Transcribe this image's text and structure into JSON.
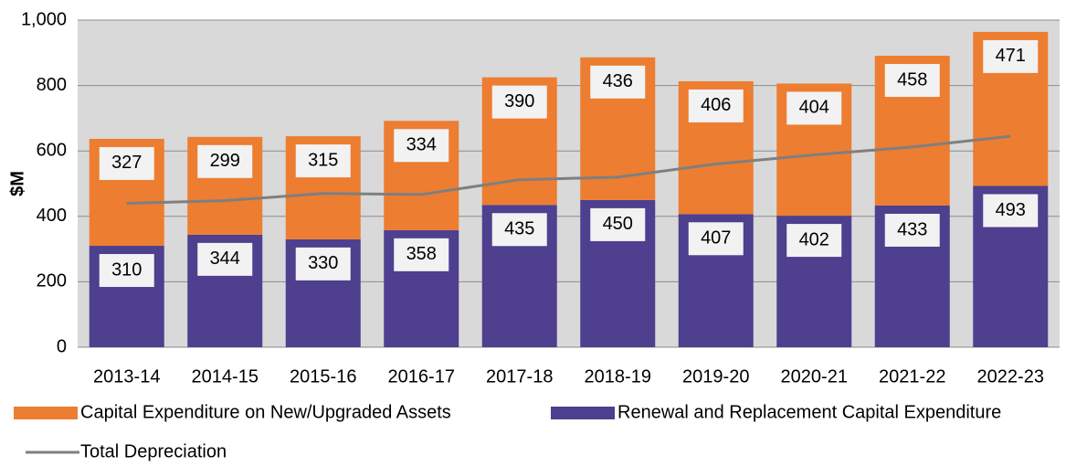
{
  "chart_data": {
    "type": "stacked_bar_line",
    "y_axis_label": "$M",
    "categories": [
      "2013-14",
      "2014-15",
      "2015-16",
      "2016-17",
      "2017-18",
      "2018-19",
      "2019-20",
      "2020-21",
      "2021-22",
      "2022-23"
    ],
    "series": [
      {
        "name": "Capital Expenditure on New/Upgraded Assets",
        "type": "bar",
        "color": "#ed7d31",
        "values": [
          327,
          299,
          315,
          334,
          390,
          436,
          406,
          404,
          458,
          471
        ]
      },
      {
        "name": "Renewal and Replacement Capital Expenditure",
        "type": "bar",
        "color": "#4e3f8f",
        "values": [
          310,
          344,
          330,
          358,
          435,
          450,
          407,
          402,
          433,
          493
        ]
      },
      {
        "name": "Total Depreciation",
        "type": "line",
        "color": "#7f7f7f",
        "values": [
          440,
          448,
          470,
          467,
          512,
          520,
          560,
          588,
          612,
          645
        ]
      }
    ],
    "ylim": [
      0,
      1000
    ],
    "yticks": [
      0,
      200,
      400,
      600,
      800,
      {
        "value": 1000,
        "label": "1,000"
      }
    ],
    "grid": true
  }
}
